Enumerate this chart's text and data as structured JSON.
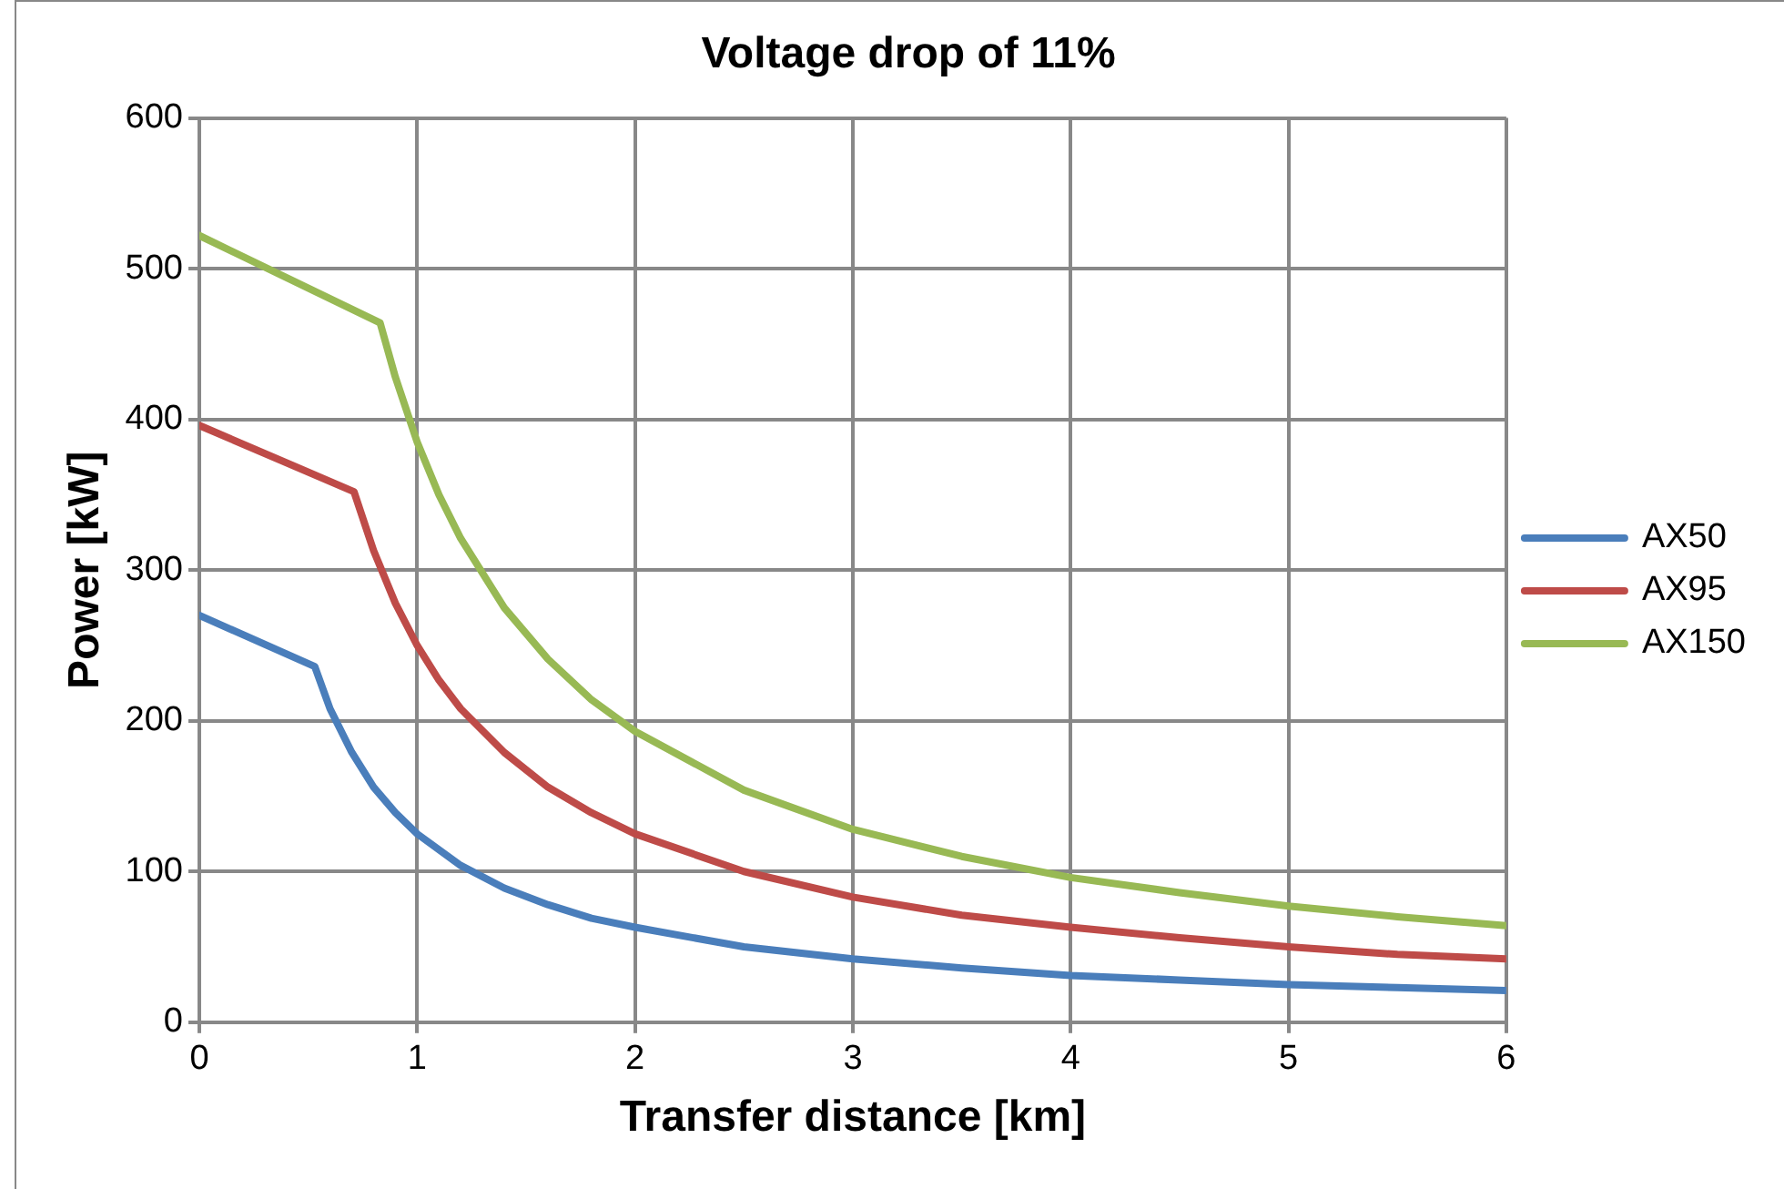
{
  "chart_data": {
    "type": "line",
    "title": "Voltage drop of 11%",
    "xlabel": "Transfer distance [km]",
    "ylabel": "Power [kW]",
    "xlim": [
      0,
      6
    ],
    "xticks": [
      0,
      1,
      2,
      3,
      4,
      5,
      6
    ],
    "ylim": [
      0,
      600
    ],
    "yticks": [
      0,
      100,
      200,
      300,
      400,
      500,
      600
    ],
    "grid": true,
    "legend": "right",
    "marker": "none",
    "line_style": "solid",
    "series": [
      {
        "name": "AX50",
        "color": "#4a7ebb",
        "x": [
          0,
          0.53,
          0.6,
          0.7,
          0.8,
          0.9,
          1,
          1.2,
          1.4,
          1.6,
          1.8,
          2,
          2.5,
          3,
          3.5,
          4,
          4.5,
          5,
          5.5,
          6
        ],
        "values": [
          270,
          236,
          208,
          179,
          156,
          139,
          125,
          104,
          89,
          78,
          69,
          63,
          50,
          42,
          36,
          31,
          28,
          25,
          23,
          21
        ]
      },
      {
        "name": "AX95",
        "color": "#be4b48",
        "x": [
          0,
          0.71,
          0.8,
          0.9,
          1,
          1.1,
          1.2,
          1.4,
          1.6,
          1.8,
          2,
          2.5,
          3,
          3.5,
          4,
          4.5,
          5,
          5.5,
          6
        ],
        "values": [
          396,
          352,
          313,
          278,
          250,
          227,
          208,
          179,
          156,
          139,
          125,
          100,
          83,
          71,
          63,
          56,
          50,
          45,
          42
        ]
      },
      {
        "name": "AX150",
        "color": "#98b954",
        "x": [
          0,
          0.83,
          0.9,
          1,
          1.1,
          1.2,
          1.4,
          1.6,
          1.8,
          2,
          2.5,
          3,
          3.5,
          4,
          4.5,
          5,
          5.5,
          6
        ],
        "values": [
          522,
          464,
          428,
          385,
          350,
          321,
          275,
          241,
          214,
          193,
          154,
          128,
          110,
          96,
          86,
          77,
          70,
          64
        ]
      }
    ]
  }
}
